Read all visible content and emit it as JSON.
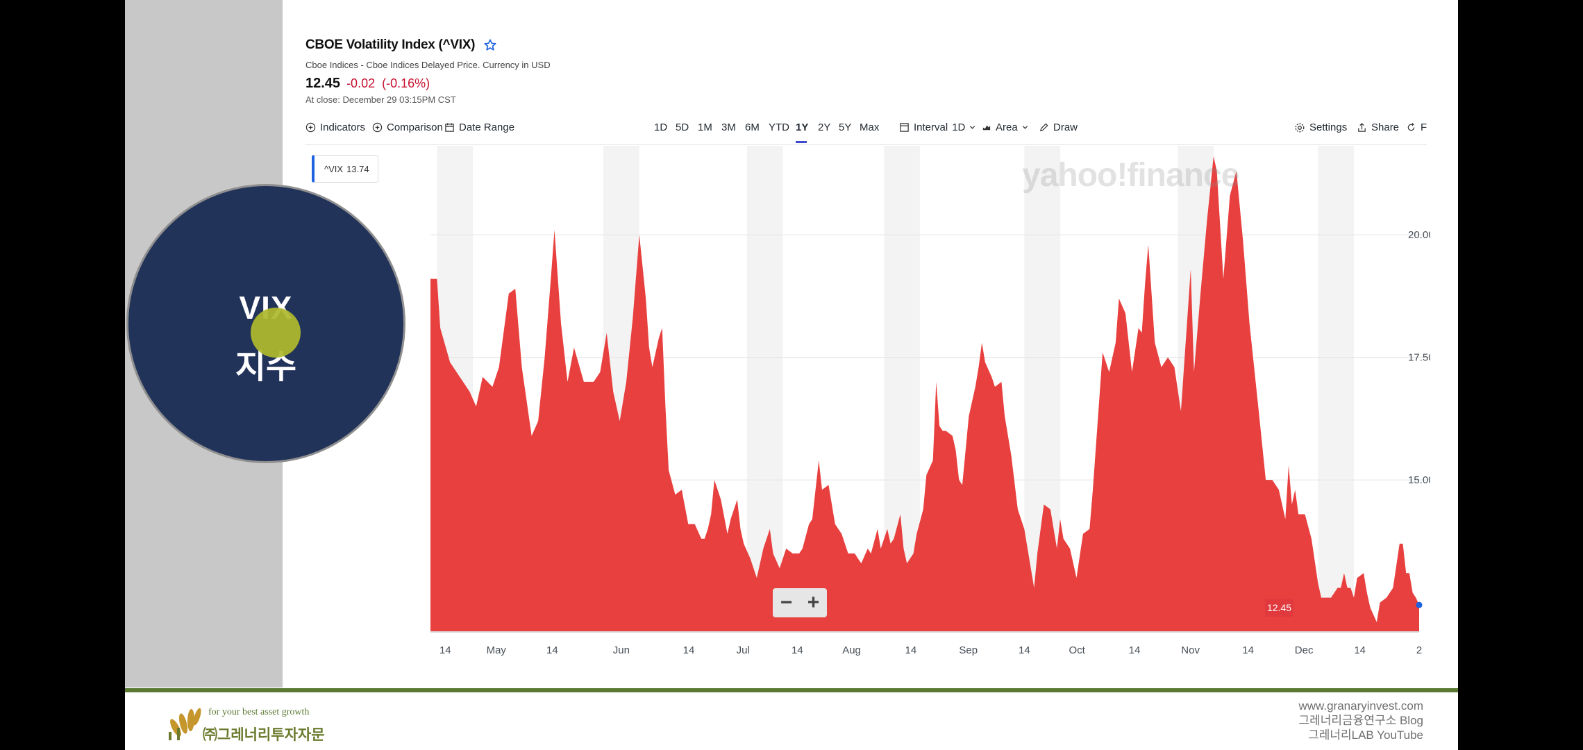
{
  "badge": {
    "line1": "VIX",
    "line2": "지수"
  },
  "quote": {
    "title": "CBOE Volatility Index (^VIX)",
    "subtitle": "Cboe Indices - Cboe Indices Delayed Price. Currency in USD",
    "price": "12.45",
    "change": "-0.02",
    "change_pct": "(-0.16%)",
    "close_time": "At close: December 29 03:15PM CST"
  },
  "toolbar": {
    "indicators": "Indicators",
    "comparison": "Comparison",
    "date_range": "Date Range",
    "ranges": [
      "1D",
      "5D",
      "1M",
      "3M",
      "6M",
      "YTD",
      "1Y",
      "2Y",
      "5Y",
      "Max"
    ],
    "active_range": "1Y",
    "interval": "Interval",
    "interval_value": "1D",
    "chart_type": "Area",
    "draw": "Draw",
    "settings": "Settings",
    "share": "Share",
    "cut_label": "F"
  },
  "chart_data": {
    "type": "area",
    "series": [
      {
        "name": "^VIX",
        "color": "#e8403e",
        "points": [
          [
            0,
            19.1
          ],
          [
            2,
            19.1
          ],
          [
            3,
            18.1
          ],
          [
            6,
            17.4
          ],
          [
            10,
            17.0
          ],
          [
            12,
            16.8
          ],
          [
            14,
            16.5
          ],
          [
            16,
            17.1
          ],
          [
            19,
            16.9
          ],
          [
            21,
            17.3
          ],
          [
            24,
            18.8
          ],
          [
            26,
            18.9
          ],
          [
            28,
            17.3
          ],
          [
            31,
            15.9
          ],
          [
            33,
            16.2
          ],
          [
            35,
            17.5
          ],
          [
            37,
            19.2
          ],
          [
            38,
            20.1
          ],
          [
            40,
            18.2
          ],
          [
            42,
            17.0
          ],
          [
            44,
            17.7
          ],
          [
            47,
            17.0
          ],
          [
            50,
            17.0
          ],
          [
            52,
            17.2
          ],
          [
            54,
            18.0
          ],
          [
            56,
            16.8
          ],
          [
            58,
            16.2
          ],
          [
            60,
            17.0
          ],
          [
            62,
            18.3
          ],
          [
            64,
            20.0
          ],
          [
            66,
            18.7
          ],
          [
            67,
            17.7
          ],
          [
            68,
            17.3
          ],
          [
            70,
            17.9
          ],
          [
            71,
            18.1
          ],
          [
            72,
            16.5
          ],
          [
            73,
            15.2
          ],
          [
            75,
            14.7
          ],
          [
            77,
            14.8
          ],
          [
            79,
            14.1
          ],
          [
            81,
            14.1
          ],
          [
            83,
            13.8
          ],
          [
            84,
            13.8
          ],
          [
            85,
            14.0
          ],
          [
            86,
            14.3
          ],
          [
            87,
            15.0
          ],
          [
            89,
            14.6
          ],
          [
            91,
            13.9
          ],
          [
            92,
            14.2
          ],
          [
            94,
            14.6
          ],
          [
            95,
            14.0
          ],
          [
            96,
            13.7
          ],
          [
            98,
            13.4
          ],
          [
            100,
            13.0
          ],
          [
            102,
            13.6
          ],
          [
            104,
            14.0
          ],
          [
            105,
            13.5
          ],
          [
            107,
            13.2
          ],
          [
            109,
            13.6
          ],
          [
            111,
            13.5
          ],
          [
            113,
            13.5
          ],
          [
            114,
            13.6
          ],
          [
            116,
            14.1
          ],
          [
            117,
            14.2
          ],
          [
            119,
            15.4
          ],
          [
            120,
            14.8
          ],
          [
            122,
            14.9
          ],
          [
            124,
            14.1
          ],
          [
            126,
            13.9
          ],
          [
            128,
            13.5
          ],
          [
            130,
            13.5
          ],
          [
            132,
            13.3
          ],
          [
            134,
            13.6
          ],
          [
            135,
            13.5
          ],
          [
            137,
            14.0
          ],
          [
            138,
            13.6
          ],
          [
            140,
            14.0
          ],
          [
            141,
            13.7
          ],
          [
            142,
            13.8
          ],
          [
            144,
            14.3
          ],
          [
            145,
            13.6
          ],
          [
            146,
            13.3
          ],
          [
            148,
            13.5
          ],
          [
            149,
            13.9
          ],
          [
            151,
            14.4
          ],
          [
            152,
            15.1
          ],
          [
            154,
            15.4
          ],
          [
            155,
            17.0
          ],
          [
            156,
            16.1
          ],
          [
            157,
            16.0
          ],
          [
            158,
            16.0
          ],
          [
            160,
            15.9
          ],
          [
            161,
            15.6
          ],
          [
            162,
            15.0
          ],
          [
            163,
            14.9
          ],
          [
            165,
            16.3
          ],
          [
            167,
            16.9
          ],
          [
            168,
            17.3
          ],
          [
            169,
            17.8
          ],
          [
            170,
            17.4
          ],
          [
            172,
            17.1
          ],
          [
            173,
            16.9
          ],
          [
            175,
            17.0
          ],
          [
            176,
            16.3
          ],
          [
            178,
            15.5
          ],
          [
            180,
            14.4
          ],
          [
            182,
            14.0
          ],
          [
            184,
            13.2
          ],
          [
            185,
            12.8
          ],
          [
            186,
            13.5
          ],
          [
            188,
            14.5
          ],
          [
            190,
            14.4
          ],
          [
            192,
            13.6
          ],
          [
            193,
            14.2
          ],
          [
            194,
            13.8
          ],
          [
            196,
            13.6
          ],
          [
            198,
            13.0
          ],
          [
            200,
            13.9
          ],
          [
            202,
            14.0
          ],
          [
            203,
            14.8
          ],
          [
            206,
            17.6
          ],
          [
            208,
            17.2
          ],
          [
            210,
            17.8
          ],
          [
            211,
            18.7
          ],
          [
            213,
            18.4
          ],
          [
            215,
            17.2
          ],
          [
            217,
            18.1
          ],
          [
            218,
            18.0
          ],
          [
            219,
            19.0
          ],
          [
            220,
            19.8
          ],
          [
            222,
            17.8
          ],
          [
            224,
            17.3
          ],
          [
            226,
            17.5
          ],
          [
            228,
            17.3
          ],
          [
            230,
            16.4
          ],
          [
            233,
            19.3
          ],
          [
            234,
            17.2
          ],
          [
            236,
            18.8
          ],
          [
            238,
            20.3
          ],
          [
            240,
            21.6
          ],
          [
            241,
            21.3
          ],
          [
            243,
            19.1
          ],
          [
            245,
            20.8
          ],
          [
            247,
            21.3
          ],
          [
            249,
            19.9
          ],
          [
            251,
            18.2
          ],
          [
            254,
            16.3
          ],
          [
            256,
            15.0
          ],
          [
            258,
            15.0
          ],
          [
            260,
            14.8
          ],
          [
            262,
            14.2
          ],
          [
            263,
            15.3
          ],
          [
            264,
            14.5
          ],
          [
            265,
            14.8
          ],
          [
            266,
            14.3
          ],
          [
            268,
            14.3
          ],
          [
            270,
            13.8
          ],
          [
            272,
            12.9
          ],
          [
            273,
            12.6
          ],
          [
            274,
            12.6
          ],
          [
            276,
            12.6
          ],
          [
            278,
            12.8
          ],
          [
            279,
            12.8
          ],
          [
            280,
            13.1
          ],
          [
            281,
            12.8
          ],
          [
            282,
            12.8
          ],
          [
            283,
            12.6
          ],
          [
            284,
            13.0
          ],
          [
            286,
            13.1
          ],
          [
            287,
            12.7
          ],
          [
            288,
            12.4
          ],
          [
            290,
            12.1
          ],
          [
            291,
            12.5
          ],
          [
            293,
            12.6
          ],
          [
            295,
            12.8
          ],
          [
            297,
            13.7
          ],
          [
            298,
            13.7
          ],
          [
            299,
            13.1
          ],
          [
            300,
            13.1
          ],
          [
            301,
            12.7
          ],
          [
            302,
            12.6
          ],
          [
            303,
            12.45
          ]
        ]
      }
    ],
    "x_tick_labels": [
      "14",
      "May",
      "14",
      "Jun",
      "14",
      "Jul",
      "14",
      "Aug",
      "14",
      "Sep",
      "14",
      "Oct",
      "14",
      "Nov",
      "14",
      "Dec",
      "14",
      "2"
    ],
    "y_tick_labels": [
      "20.00",
      "17.50",
      "15.00"
    ],
    "ylim": [
      11.9,
      21.8
    ],
    "hover_label": "^VIX",
    "hover_value": "13.74",
    "last_value_label": "12.45",
    "watermark": "yahoo!finance",
    "zoom_out": "−",
    "zoom_in": "+"
  },
  "footer": {
    "slogan": "for your best asset growth",
    "company": "㈜그레너리투자자문",
    "website": "www.granaryinvest.com",
    "blog": "그레너리금융연구소 Blog",
    "youtube": "그레너리LAB YouTube"
  }
}
